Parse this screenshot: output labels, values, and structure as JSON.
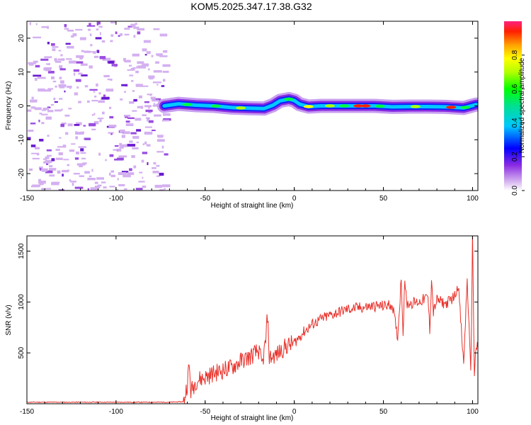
{
  "title": "KOM5.2025.347.17.38.G32",
  "chart_data": [
    {
      "type": "heatmap",
      "xlabel": "Height of straight line (km)",
      "ylabel": "Frequency (Hz)",
      "xlim": [
        -150,
        103
      ],
      "ylim": [
        -25,
        25
      ],
      "xticks": [
        "-150",
        "-100",
        "-50",
        "0",
        "50",
        "100"
      ],
      "yticks": [
        "20",
        "10",
        "0",
        "-10",
        "-20"
      ],
      "colorbar": {
        "label": "Normalized spectral amplitude",
        "range": [
          0,
          1
        ],
        "ticks": [
          "0.0",
          "0.2",
          "0.4",
          "0.6",
          "0.8"
        ]
      },
      "ridge": {
        "description_points_x": [
          -73,
          -65,
          -55,
          -45,
          -35,
          -25,
          -17,
          -12,
          -8,
          -3,
          0,
          3,
          8,
          15,
          25,
          35,
          45,
          55,
          65,
          75,
          85,
          95,
          102
        ],
        "frequency_hz": [
          0,
          0.6,
          0.2,
          0,
          -0.5,
          -0.7,
          -0.8,
          0.2,
          1.5,
          2.0,
          1.6,
          0.5,
          -0.2,
          0,
          0,
          0,
          0,
          -0.3,
          -0.2,
          -0.2,
          -0.3,
          -0.6,
          0.4
        ]
      },
      "noise_region_x": [
        -150,
        -73
      ]
    },
    {
      "type": "line",
      "xlabel": "Height of straight line (km)",
      "ylabel": "SNR (v/v)",
      "xlim": [
        -150,
        103
      ],
      "ylim": [
        0,
        1650
      ],
      "xticks": [
        "-150",
        "-100",
        "-50",
        "0",
        "50",
        "100"
      ],
      "yticks": [
        "500",
        "1000",
        "1500"
      ],
      "color": "#e8312a",
      "series": [
        {
          "x": [
            -150,
            -140,
            -130,
            -120,
            -110,
            -100,
            -90,
            -80,
            -70,
            -62,
            -60,
            -59,
            -58,
            -55,
            -50,
            -45,
            -40,
            -35,
            -30,
            -25,
            -20,
            -18,
            -16,
            -15,
            -14,
            -10,
            -5,
            0,
            5,
            10,
            15,
            20,
            25,
            30,
            35,
            40,
            45,
            50,
            55,
            58,
            60,
            61,
            62,
            63,
            65,
            70,
            75,
            76,
            77,
            78,
            80,
            85,
            90,
            92,
            95,
            97,
            99,
            100,
            101,
            102,
            103
          ],
          "y": [
            15,
            15,
            15,
            15,
            15,
            15,
            15,
            15,
            15,
            20,
            200,
            380,
            120,
            230,
            260,
            300,
            330,
            360,
            420,
            460,
            520,
            380,
            620,
            880,
            450,
            480,
            560,
            600,
            700,
            780,
            830,
            870,
            900,
            930,
            940,
            950,
            960,
            960,
            975,
            650,
            1240,
            700,
            1240,
            980,
            990,
            1000,
            1050,
            720,
            1240,
            900,
            1020,
            980,
            1060,
            1180,
            380,
            1230,
            280,
            1650,
            300,
            560,
            550
          ]
        }
      ]
    }
  ]
}
